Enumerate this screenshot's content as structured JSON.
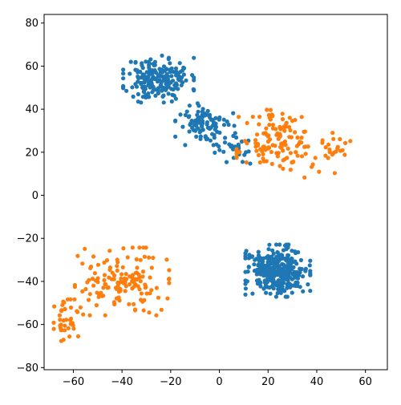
{
  "chart_data": {
    "type": "scatter",
    "title": "",
    "xlabel": "",
    "ylabel": "",
    "xlim": [
      -72,
      69
    ],
    "ylim": [
      -81,
      84
    ],
    "grid": false,
    "legend": "none",
    "xticks": [
      -60,
      -40,
      -20,
      0,
      20,
      40,
      60
    ],
    "yticks": [
      -80,
      -60,
      -40,
      -20,
      0,
      20,
      40,
      60,
      80
    ],
    "colors": {
      "series_0": "#1f77b4",
      "series_1": "#ff7f0e",
      "axis": "#000000"
    },
    "series": [
      {
        "color": "#1f77b4",
        "clusters": [
          {
            "center": [
              -25,
              54
            ],
            "spread": [
              12,
              9
            ],
            "count": 210,
            "seed": 11
          },
          {
            "center": [
              -6,
              33
            ],
            "spread": [
              10,
              8
            ],
            "count": 90,
            "seed": 12
          },
          {
            "center": [
              6,
              22
            ],
            "spread": [
              8,
              6
            ],
            "count": 30,
            "seed": 13
          },
          {
            "center": [
              24,
              -35
            ],
            "spread": [
              11,
              10
            ],
            "count": 340,
            "seed": 14
          }
        ]
      },
      {
        "color": "#ff7f0e",
        "clusters": [
          {
            "center": [
              24,
              24
            ],
            "spread": [
              14,
              13
            ],
            "count": 130,
            "seed": 21
          },
          {
            "center": [
              -40,
              -40
            ],
            "spread": [
              16,
              13
            ],
            "count": 140,
            "seed": 22
          },
          {
            "center": [
              -62,
              -58
            ],
            "spread": [
              5,
              8
            ],
            "count": 40,
            "seed": 23
          },
          {
            "center": [
              45,
              20
            ],
            "spread": [
              8,
              8
            ],
            "count": 25,
            "seed": 24
          }
        ]
      }
    ]
  }
}
